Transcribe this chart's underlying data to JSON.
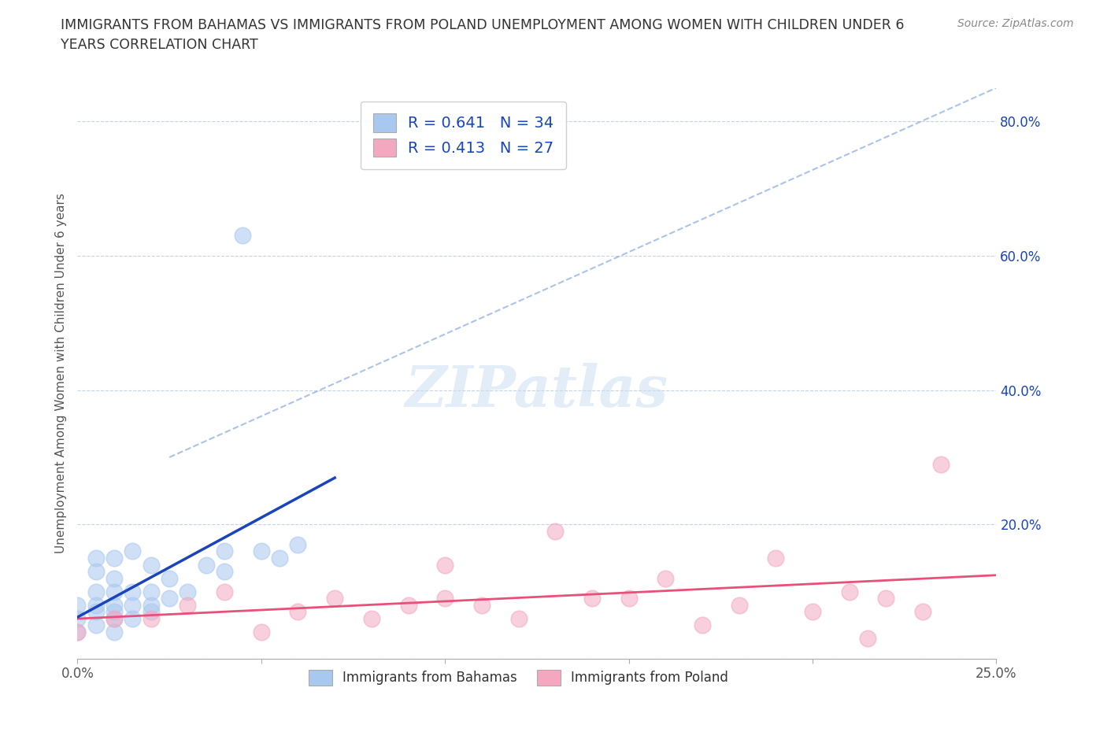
{
  "title_line1": "IMMIGRANTS FROM BAHAMAS VS IMMIGRANTS FROM POLAND UNEMPLOYMENT AMONG WOMEN WITH CHILDREN UNDER 6",
  "title_line2": "YEARS CORRELATION CHART",
  "source": "Source: ZipAtlas.com",
  "ylabel": "Unemployment Among Women with Children Under 6 years",
  "xlim": [
    0.0,
    0.25
  ],
  "ylim": [
    0.0,
    0.85
  ],
  "xticks": [
    0.0,
    0.05,
    0.1,
    0.15,
    0.2,
    0.25
  ],
  "xticklabels": [
    "0.0%",
    "",
    "",
    "",
    "",
    "25.0%"
  ],
  "yticks": [
    0.0,
    0.2,
    0.4,
    0.6,
    0.8
  ],
  "yticklabels": [
    "",
    "20.0%",
    "40.0%",
    "60.0%",
    "80.0%"
  ],
  "background_color": "#ffffff",
  "grid_color": "#b8c8d8",
  "bahamas_color": "#a8c8f0",
  "poland_color": "#f4a8c0",
  "bahamas_line_color": "#1a44bb",
  "poland_line_color": "#e8507a",
  "dashed_line_color": "#88aadd",
  "R_bahamas": 0.641,
  "N_bahamas": 34,
  "R_poland": 0.413,
  "N_poland": 27,
  "legend_label_color": "#1a44bb",
  "ytick_color": "#1a44bb",
  "title_color": "#333333",
  "source_color": "#888888",
  "bahamas_x": [
    0.0,
    0.0,
    0.0,
    0.005,
    0.005,
    0.005,
    0.005,
    0.005,
    0.005,
    0.01,
    0.01,
    0.01,
    0.01,
    0.01,
    0.01,
    0.01,
    0.015,
    0.015,
    0.015,
    0.015,
    0.02,
    0.02,
    0.02,
    0.02,
    0.025,
    0.025,
    0.03,
    0.035,
    0.04,
    0.04,
    0.045,
    0.05,
    0.055,
    0.06
  ],
  "bahamas_y": [
    0.04,
    0.06,
    0.08,
    0.05,
    0.07,
    0.08,
    0.1,
    0.13,
    0.15,
    0.04,
    0.06,
    0.07,
    0.08,
    0.1,
    0.12,
    0.15,
    0.06,
    0.08,
    0.1,
    0.16,
    0.07,
    0.08,
    0.1,
    0.14,
    0.09,
    0.12,
    0.1,
    0.14,
    0.13,
    0.16,
    0.63,
    0.16,
    0.15,
    0.17
  ],
  "poland_x": [
    0.0,
    0.01,
    0.02,
    0.03,
    0.04,
    0.05,
    0.06,
    0.07,
    0.08,
    0.09,
    0.1,
    0.1,
    0.11,
    0.12,
    0.13,
    0.14,
    0.15,
    0.16,
    0.17,
    0.18,
    0.19,
    0.2,
    0.21,
    0.215,
    0.22,
    0.23,
    0.235
  ],
  "poland_y": [
    0.04,
    0.06,
    0.06,
    0.08,
    0.1,
    0.04,
    0.07,
    0.09,
    0.06,
    0.08,
    0.09,
    0.14,
    0.08,
    0.06,
    0.19,
    0.09,
    0.09,
    0.12,
    0.05,
    0.08,
    0.15,
    0.07,
    0.1,
    0.03,
    0.09,
    0.07,
    0.29
  ],
  "watermark_text": "ZIPatlas",
  "watermark_fontsize": 52,
  "watermark_color": "#c8ddf0",
  "watermark_alpha": 0.5
}
